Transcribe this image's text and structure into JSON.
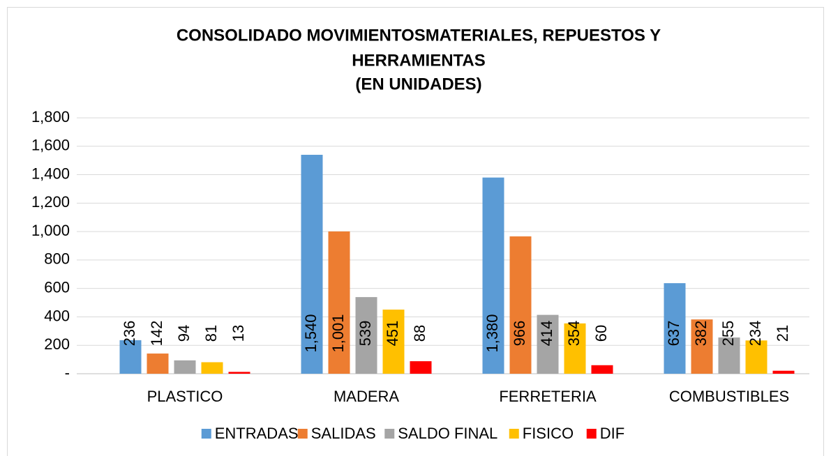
{
  "chart_data": {
    "type": "bar",
    "title": [
      "CONSOLIDADO MOVIMIENTOSMATERIALES, REPUESTOS Y",
      "HERRAMIENTAS",
      "(EN UNIDADES)"
    ],
    "categories": [
      "PLASTICO",
      "MADERA",
      "FERRETERIA",
      "COMBUSTIBLES"
    ],
    "series": [
      {
        "name": "ENTRADAS",
        "color": "#5b9bd5",
        "values": [
          236,
          1540,
          1380,
          637
        ],
        "value_labels": [
          "236",
          "1,540",
          "1,380",
          "637"
        ]
      },
      {
        "name": "SALIDAS",
        "color": "#ed7d31",
        "values": [
          142,
          1001,
          966,
          382
        ],
        "value_labels": [
          "142",
          "1,001",
          "966",
          "382"
        ]
      },
      {
        "name": "SALDO FINAL",
        "color": "#a5a5a5",
        "values": [
          94,
          539,
          414,
          255
        ],
        "value_labels": [
          "94",
          "539",
          "414",
          "255"
        ]
      },
      {
        "name": "FISICO",
        "color": "#ffc000",
        "values": [
          81,
          451,
          354,
          234
        ],
        "value_labels": [
          "81",
          "451",
          "354",
          "234"
        ]
      },
      {
        "name": "DIF",
        "color": "#ff0000",
        "values": [
          13,
          88,
          60,
          21
        ],
        "value_labels": [
          "13",
          "88",
          "60",
          "21"
        ]
      }
    ],
    "ylim": [
      0,
      1800
    ],
    "yticks": [
      {
        "value": 0,
        "label": "-"
      },
      200,
      400,
      600,
      800,
      {
        "value": 1000,
        "label": "1,000"
      },
      {
        "value": 1200,
        "label": "1,200"
      },
      {
        "value": 1400,
        "label": "1,400"
      },
      {
        "value": 1600,
        "label": "1,600"
      },
      {
        "value": 1800,
        "label": "1,800"
      }
    ],
    "grid": true,
    "legend": "bottom"
  }
}
